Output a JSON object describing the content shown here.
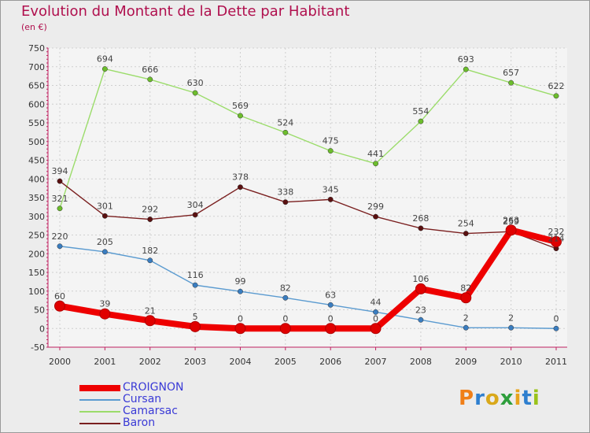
{
  "title": "Evolution du Montant de la Dette par Habitant",
  "unit": "(en €)",
  "logo": {
    "text": "Proxiti",
    "colors": [
      "#f07f18",
      "#2e7fcf",
      "#d9a81a",
      "#2e9e3c",
      "#e8a31a",
      "#2e7fcf",
      "#9ac31b"
    ]
  },
  "chart_data": {
    "type": "line",
    "x": [
      "2000",
      "2001",
      "2002",
      "2003",
      "2004",
      "2005",
      "2006",
      "2007",
      "2008",
      "2009",
      "2010",
      "2011"
    ],
    "ylim": [
      -50,
      750
    ],
    "yticks": [
      -50,
      0,
      50,
      100,
      150,
      200,
      250,
      300,
      350,
      400,
      450,
      500,
      550,
      600,
      650,
      700,
      750
    ],
    "grid": true,
    "legend": "bottom-left",
    "series": [
      {
        "name": "CROIGNON",
        "color": "#ee0000",
        "marker_color": "#cc0000",
        "values": [
          60,
          39,
          21,
          5,
          0,
          0,
          0,
          0,
          106,
          82,
          263,
          232
        ],
        "labels": [
          "60",
          "39",
          "21",
          "5",
          "0",
          "0",
          "0",
          "0",
          "106",
          "82",
          "263",
          "232"
        ]
      },
      {
        "name": "Cursan",
        "color": "#5b9bd0",
        "marker_color": "#3a7dc0",
        "values": [
          220,
          205,
          182,
          116,
          99,
          82,
          63,
          44,
          23,
          2,
          2,
          0
        ],
        "labels": [
          "220",
          "205",
          "182",
          "116",
          "99",
          "82",
          "63",
          "44",
          "23",
          "2",
          "2",
          "0"
        ]
      },
      {
        "name": "Camarsac",
        "color": "#9bdc6a",
        "marker_color": "#6cbd2c",
        "values": [
          321,
          694,
          666,
          630,
          569,
          524,
          475,
          441,
          554,
          693,
          657,
          622
        ],
        "labels": [
          "321",
          "694",
          "666",
          "630",
          "569",
          "524",
          "475",
          "441",
          "554",
          "693",
          "657",
          "622"
        ]
      },
      {
        "name": "Baron",
        "color": "#7a1f1f",
        "marker_color": "#5a1010",
        "values": [
          394,
          301,
          292,
          304,
          378,
          338,
          345,
          299,
          268,
          254,
          259,
          214
        ],
        "labels": [
          "394",
          "301",
          "292",
          "304",
          "378",
          "338",
          "345",
          "299",
          "268",
          "254",
          "259",
          "214"
        ]
      }
    ]
  }
}
